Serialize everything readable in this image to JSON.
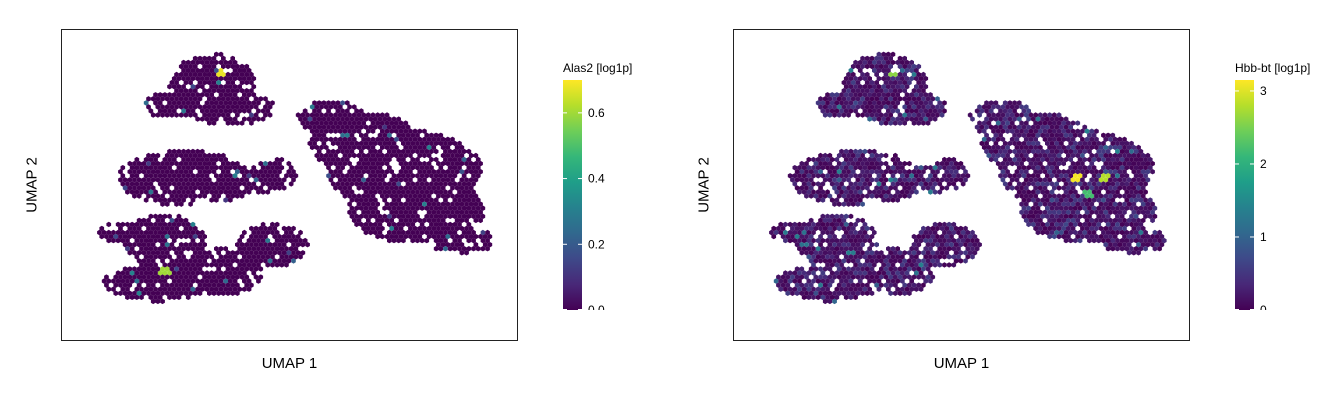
{
  "chart_data": [
    {
      "type": "heatmap",
      "subtype": "hexbin-umap",
      "xlabel": "UMAP 1",
      "ylabel": "UMAP 2",
      "colorbar": {
        "label": "Alas2 [log1p]",
        "range": [
          0,
          0.7
        ],
        "ticks": [
          0.0,
          0.2,
          0.4,
          0.6
        ],
        "tick_labels": [
          "0.0",
          "0.2",
          "0.4",
          "0.6"
        ],
        "colormap": "viridis"
      },
      "typical_value": 0.0,
      "high_value_spots": [
        [
          -0.3,
          0.73,
          0.68
        ],
        [
          -0.78,
          0.02,
          0.3
        ],
        [
          -0.75,
          0.9,
          0.35
        ],
        [
          0.15,
          -0.2,
          0.25
        ],
        [
          -0.55,
          -0.55,
          0.6
        ]
      ],
      "grid": false
    },
    {
      "type": "heatmap",
      "subtype": "hexbin-umap",
      "xlabel": "UMAP 1",
      "ylabel": "UMAP 2",
      "colorbar": {
        "label": "Hbb-bt [log1p]",
        "range": [
          0,
          3.15
        ],
        "ticks": [
          0,
          1,
          2,
          3
        ],
        "tick_labels": [
          "0",
          "1",
          "2",
          "3"
        ],
        "colormap": "viridis"
      },
      "typical_value": 0.3,
      "high_value_spots": [
        [
          0.5,
          0.05,
          3.1
        ],
        [
          0.62,
          0.06,
          2.8
        ],
        [
          0.55,
          -0.05,
          2.2
        ],
        [
          -0.3,
          0.73,
          2.6
        ]
      ],
      "grid": false
    }
  ],
  "colors": {
    "viridis": [
      "#440154",
      "#482878",
      "#3e4989",
      "#31688e",
      "#26828e",
      "#1f9e89",
      "#35b779",
      "#6ece58",
      "#b5de2b",
      "#fde725"
    ],
    "frame": "#222222"
  }
}
